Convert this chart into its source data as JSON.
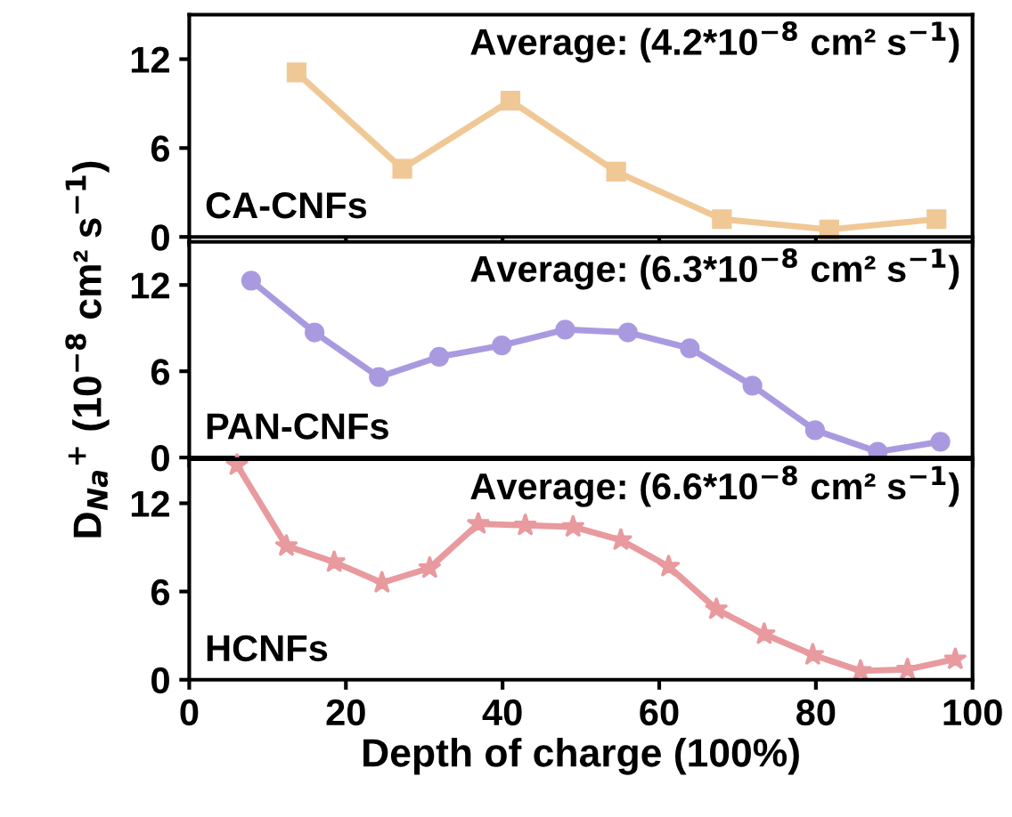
{
  "chart_data": [
    {
      "type": "line",
      "x": [
        13.7,
        27.2,
        41.0,
        54.5,
        68.0,
        81.7,
        95.4
      ],
      "series": [
        {
          "name": "CA-CNFs",
          "color": "#f0c896",
          "values": [
            11.1,
            4.6,
            9.2,
            4.4,
            1.2,
            0.5,
            1.2
          ]
        }
      ],
      "marker": "square",
      "xlim": [
        0,
        100
      ],
      "xticks": [
        0,
        20,
        40,
        60,
        80,
        100
      ],
      "ylim": [
        0,
        15
      ],
      "yticks": [
        0,
        6,
        12
      ],
      "tick_labels": "y",
      "grid": false,
      "legend": false,
      "annotations": [
        "Average: (4.2*10$^{−8}$ cm² s$^{−1}$)"
      ]
    },
    {
      "type": "line",
      "x": [
        7.9,
        16.0,
        24.2,
        31.9,
        39.9,
        48.0,
        56.0,
        63.9,
        71.9,
        79.9,
        87.9,
        95.9
      ],
      "series": [
        {
          "name": "PAN-CNFs",
          "color": "#a99ae0",
          "values": [
            12.3,
            8.7,
            5.6,
            7.0,
            7.8,
            8.9,
            8.7,
            7.6,
            5.0,
            1.9,
            0.4,
            1.1
          ]
        }
      ],
      "marker": "circle",
      "xlim": [
        0,
        100
      ],
      "xticks": [
        0,
        20,
        40,
        60,
        80,
        100
      ],
      "ylim": [
        0,
        15
      ],
      "yticks": [
        0,
        6,
        12
      ],
      "tick_labels": "y",
      "grid": false,
      "legend": false,
      "ylabel": "D$_{Na}$$^{+}$ (10$^{−8}$ cm² s$^{−1}$)",
      "annotations": [
        "Average: (6.3*10$^{−8}$ cm² s$^{−1}$)"
      ]
    },
    {
      "type": "line",
      "x": [
        6.1,
        12.4,
        18.5,
        24.6,
        30.7,
        36.9,
        42.9,
        49.0,
        55.1,
        61.2,
        67.3,
        73.4,
        79.6,
        85.7,
        91.7,
        97.8
      ],
      "series": [
        {
          "name": "HCNFs",
          "color": "#e89a9e",
          "values": [
            14.6,
            9.1,
            8.0,
            6.6,
            7.6,
            10.6,
            10.5,
            10.4,
            9.5,
            7.7,
            4.8,
            3.1,
            1.7,
            0.6,
            0.7,
            1.4
          ]
        }
      ],
      "marker": "star",
      "xlim": [
        0,
        100
      ],
      "xticks": [
        0,
        20,
        40,
        60,
        80,
        100
      ],
      "ylim": [
        0,
        15
      ],
      "yticks": [
        0,
        6,
        12
      ],
      "grid": false,
      "legend": false,
      "xlabel": "Depth of charge (100%)",
      "annotations": [
        "Average: (6.6*10$^{−8}$ cm² s$^{−1}$)"
      ]
    }
  ]
}
